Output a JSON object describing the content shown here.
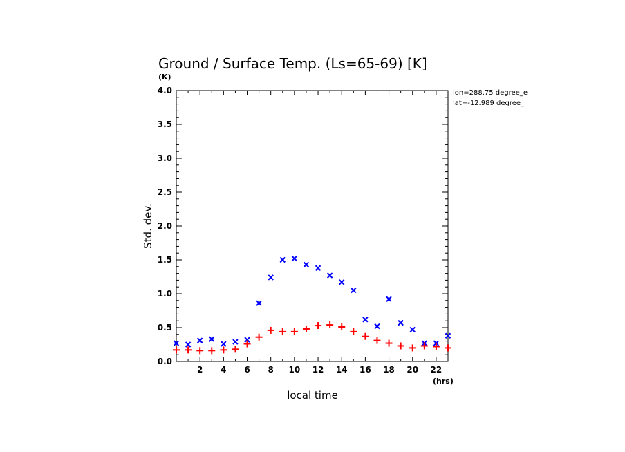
{
  "chart_data": {
    "type": "scatter",
    "title": "Ground / Surface Temp. (Ls=65-69) [K]",
    "y_unit": "(K)",
    "x_unit": "(hrs)",
    "xlabel": "local time",
    "ylabel": "Std. dev.",
    "xlim": [
      0,
      23
    ],
    "ylim": [
      0,
      4.0
    ],
    "x_ticks": [
      2,
      4,
      6,
      8,
      10,
      12,
      14,
      16,
      18,
      20,
      22
    ],
    "y_ticks": [
      "0.0",
      "0.5",
      "1.0",
      "1.5",
      "2.0",
      "2.5",
      "3.0",
      "3.5",
      "4.0"
    ],
    "annotations": [
      "lon=288.75 degree_e",
      "lat=-12.989 degree_"
    ],
    "grid": false,
    "series": [
      {
        "marker": "x",
        "color": "#0000ff",
        "x": [
          0,
          1,
          2,
          3,
          4,
          5,
          6,
          7,
          8,
          9,
          10,
          11,
          12,
          13,
          14,
          15,
          16,
          17,
          18,
          19,
          20,
          21,
          22,
          23
        ],
        "y": [
          0.27,
          0.25,
          0.31,
          0.33,
          0.26,
          0.29,
          0.32,
          0.86,
          1.24,
          1.5,
          1.52,
          1.43,
          1.38,
          1.27,
          1.17,
          1.05,
          0.62,
          0.52,
          0.92,
          0.57,
          0.47,
          0.27,
          0.27,
          0.38
        ]
      },
      {
        "marker": "+",
        "color": "#ff0000",
        "x": [
          0,
          1,
          2,
          3,
          4,
          5,
          6,
          7,
          8,
          9,
          10,
          11,
          12,
          13,
          14,
          15,
          16,
          17,
          18,
          19,
          20,
          21,
          22,
          23
        ],
        "y": [
          0.17,
          0.17,
          0.16,
          0.16,
          0.17,
          0.18,
          0.26,
          0.36,
          0.46,
          0.44,
          0.44,
          0.48,
          0.53,
          0.54,
          0.51,
          0.44,
          0.37,
          0.31,
          0.27,
          0.23,
          0.2,
          0.23,
          0.22,
          0.2
        ]
      }
    ]
  }
}
